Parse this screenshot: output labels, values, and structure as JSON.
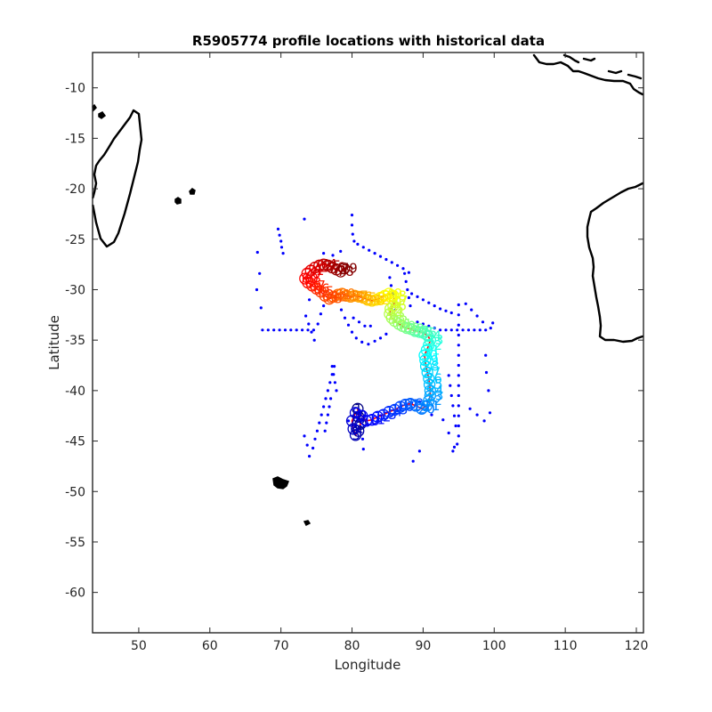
{
  "chart_data": {
    "type": "scatter",
    "title": "R5905774 profile locations with historical data",
    "xlabel": "Longitude",
    "ylabel": "Latitude",
    "xlim": [
      43.5,
      121
    ],
    "ylim": [
      -64,
      -6.5
    ],
    "xticks": [
      50,
      60,
      70,
      80,
      90,
      100,
      110,
      120
    ],
    "yticks": [
      -10,
      -15,
      -20,
      -25,
      -30,
      -35,
      -40,
      -45,
      -50,
      -55,
      -60
    ],
    "historical_color": "#0000ff",
    "trajectory_color": "#ff0000",
    "colormap": "jet",
    "historical_points": [
      [
        69.6,
        -24.0
      ],
      [
        69.8,
        -24.6
      ],
      [
        70.0,
        -25.2
      ],
      [
        70.1,
        -25.8
      ],
      [
        70.3,
        -26.4
      ],
      [
        66.7,
        -26.3
      ],
      [
        67.0,
        -28.4
      ],
      [
        66.6,
        -30.0
      ],
      [
        67.2,
        -31.8
      ],
      [
        73.3,
        -23.0
      ],
      [
        76.0,
        -26.4
      ],
      [
        77.3,
        -26.6
      ],
      [
        78.4,
        -26.2
      ],
      [
        80.0,
        -22.6
      ],
      [
        80.0,
        -23.6
      ],
      [
        80.1,
        -24.5
      ],
      [
        80.3,
        -25.2
      ],
      [
        80.8,
        -25.5
      ],
      [
        81.6,
        -25.8
      ],
      [
        82.4,
        -26.1
      ],
      [
        83.2,
        -26.4
      ],
      [
        84.0,
        -26.7
      ],
      [
        84.8,
        -27.0
      ],
      [
        85.6,
        -27.3
      ],
      [
        86.4,
        -27.6
      ],
      [
        87.2,
        -27.9
      ],
      [
        88.0,
        -28.3
      ],
      [
        85.3,
        -28.8
      ],
      [
        85.5,
        -29.6
      ],
      [
        85.7,
        -30.4
      ],
      [
        85.9,
        -31.2
      ],
      [
        86.1,
        -32.0
      ],
      [
        87.4,
        -28.4
      ],
      [
        87.6,
        -29.2
      ],
      [
        87.8,
        -30.0
      ],
      [
        88.0,
        -30.8
      ],
      [
        88.2,
        -31.6
      ],
      [
        88.4,
        -30.4
      ],
      [
        89.2,
        -30.7
      ],
      [
        90.0,
        -31.0
      ],
      [
        90.8,
        -31.3
      ],
      [
        91.6,
        -31.6
      ],
      [
        92.4,
        -31.9
      ],
      [
        93.2,
        -32.1
      ],
      [
        94.0,
        -32.3
      ],
      [
        89.2,
        -33.2
      ],
      [
        90.0,
        -33.4
      ],
      [
        90.8,
        -33.6
      ],
      [
        91.6,
        -33.8
      ],
      [
        92.4,
        -34.0
      ],
      [
        93.2,
        -34.0
      ],
      [
        94.0,
        -34.0
      ],
      [
        94.8,
        -34.0
      ],
      [
        95.6,
        -34.0
      ],
      [
        96.4,
        -34.0
      ],
      [
        97.2,
        -34.0
      ],
      [
        98.0,
        -34.0
      ],
      [
        98.8,
        -34.0
      ],
      [
        99.5,
        -33.8
      ],
      [
        99.8,
        -33.3
      ],
      [
        96.0,
        -31.4
      ],
      [
        96.8,
        -32.0
      ],
      [
        97.6,
        -32.6
      ],
      [
        98.4,
        -33.2
      ],
      [
        95.0,
        -31.5
      ],
      [
        95.0,
        -32.5
      ],
      [
        95.0,
        -33.5
      ],
      [
        95.0,
        -34.5
      ],
      [
        95.0,
        -35.5
      ],
      [
        95.0,
        -36.5
      ],
      [
        95.0,
        -37.5
      ],
      [
        95.0,
        -38.5
      ],
      [
        95.0,
        -39.5
      ],
      [
        95.0,
        -40.5
      ],
      [
        95.0,
        -41.5
      ],
      [
        95.0,
        -42.5
      ],
      [
        95.0,
        -43.5
      ],
      [
        95.0,
        -44.5
      ],
      [
        94.8,
        -45.3
      ],
      [
        94.4,
        -45.6
      ],
      [
        94.2,
        -46.0
      ],
      [
        93.6,
        -38.5
      ],
      [
        93.8,
        -39.5
      ],
      [
        94.0,
        -40.5
      ],
      [
        94.2,
        -41.5
      ],
      [
        94.4,
        -42.5
      ],
      [
        94.6,
        -43.5
      ],
      [
        98.8,
        -36.5
      ],
      [
        98.9,
        -38.2
      ],
      [
        99.2,
        -40.0
      ],
      [
        99.4,
        -42.2
      ],
      [
        98.6,
        -43.0
      ],
      [
        96.6,
        -41.8
      ],
      [
        97.6,
        -42.4
      ],
      [
        67.4,
        -34.0
      ],
      [
        68.2,
        -34.0
      ],
      [
        69.0,
        -34.0
      ],
      [
        69.8,
        -34.0
      ],
      [
        70.6,
        -34.0
      ],
      [
        71.4,
        -34.0
      ],
      [
        72.2,
        -34.0
      ],
      [
        73.0,
        -34.0
      ],
      [
        73.8,
        -34.0
      ],
      [
        74.6,
        -34.0
      ],
      [
        73.5,
        -32.6
      ],
      [
        73.9,
        -33.4
      ],
      [
        74.3,
        -34.2
      ],
      [
        74.7,
        -35.0
      ],
      [
        75.2,
        -33.4
      ],
      [
        75.6,
        -32.4
      ],
      [
        76.0,
        -31.6
      ],
      [
        74.0,
        -31.0
      ],
      [
        78.5,
        -32.0
      ],
      [
        79.0,
        -32.8
      ],
      [
        79.5,
        -33.5
      ],
      [
        80.0,
        -34.2
      ],
      [
        80.6,
        -34.8
      ],
      [
        81.4,
        -35.2
      ],
      [
        82.3,
        -35.4
      ],
      [
        83.2,
        -35.1
      ],
      [
        84.0,
        -34.8
      ],
      [
        84.8,
        -34.4
      ],
      [
        80.2,
        -32.8
      ],
      [
        81.0,
        -33.2
      ],
      [
        81.8,
        -33.6
      ],
      [
        82.6,
        -33.6
      ],
      [
        77.2,
        -37.6
      ],
      [
        77.4,
        -38.4
      ],
      [
        77.6,
        -39.2
      ],
      [
        77.8,
        -40.0
      ],
      [
        77.0,
        -40.8
      ],
      [
        76.8,
        -41.6
      ],
      [
        76.6,
        -42.4
      ],
      [
        76.4,
        -43.2
      ],
      [
        76.2,
        -44.0
      ],
      [
        74.5,
        -45.7
      ],
      [
        74.8,
        -44.8
      ],
      [
        75.1,
        -44.0
      ],
      [
        75.4,
        -43.2
      ],
      [
        75.7,
        -42.4
      ],
      [
        76.0,
        -41.6
      ],
      [
        76.3,
        -40.8
      ],
      [
        76.6,
        -40.0
      ],
      [
        76.9,
        -39.2
      ],
      [
        77.2,
        -38.4
      ],
      [
        77.5,
        -37.6
      ],
      [
        73.3,
        -44.5
      ],
      [
        73.7,
        -45.4
      ],
      [
        74.0,
        -46.5
      ],
      [
        81.5,
        -44.8
      ],
      [
        81.6,
        -45.8
      ],
      [
        88.6,
        -47.0
      ],
      [
        89.5,
        -46.0
      ],
      [
        91.2,
        -42.4
      ],
      [
        92.8,
        -42.9
      ],
      [
        93.6,
        -44.2
      ],
      [
        79.5,
        -43.0
      ],
      [
        80.5,
        -43.5
      ],
      [
        86.4,
        -42.0
      ],
      [
        87.5,
        -41.4
      ],
      [
        88.4,
        -41.2
      ],
      [
        89.5,
        -41.1
      ]
    ],
    "profiles": [
      [
        80.8,
        -41.8
      ],
      [
        80.9,
        -42.6
      ],
      [
        81.2,
        -43.3
      ],
      [
        80.9,
        -44.0
      ],
      [
        80.5,
        -44.4
      ],
      [
        80.2,
        -43.8
      ],
      [
        80.0,
        -43.0
      ],
      [
        80.5,
        -42.2
      ],
      [
        81.4,
        -42.5
      ],
      [
        82.0,
        -43.0
      ],
      [
        82.8,
        -42.9
      ],
      [
        83.6,
        -42.6
      ],
      [
        84.4,
        -42.4
      ],
      [
        85.2,
        -42.1
      ],
      [
        86.0,
        -41.9
      ],
      [
        86.8,
        -41.6
      ],
      [
        87.5,
        -41.4
      ],
      [
        88.2,
        -41.3
      ],
      [
        89.0,
        -41.5
      ],
      [
        89.8,
        -41.8
      ],
      [
        90.5,
        -41.5
      ],
      [
        90.8,
        -41.0
      ],
      [
        91.0,
        -40.5
      ],
      [
        91.0,
        -40.0
      ],
      [
        90.9,
        -39.4
      ],
      [
        90.8,
        -38.8
      ],
      [
        90.6,
        -38.2
      ],
      [
        90.4,
        -37.6
      ],
      [
        90.3,
        -37.0
      ],
      [
        90.2,
        -36.5
      ],
      [
        90.5,
        -36.0
      ],
      [
        90.8,
        -35.5
      ],
      [
        91.0,
        -35.0
      ],
      [
        90.7,
        -34.6
      ],
      [
        90.1,
        -34.3
      ],
      [
        89.5,
        -34.2
      ],
      [
        88.9,
        -34.1
      ],
      [
        88.3,
        -33.9
      ],
      [
        87.7,
        -33.8
      ],
      [
        87.1,
        -33.6
      ],
      [
        86.6,
        -33.4
      ],
      [
        86.0,
        -33.1
      ],
      [
        85.6,
        -32.8
      ],
      [
        85.3,
        -32.4
      ],
      [
        85.4,
        -31.9
      ],
      [
        85.8,
        -31.6
      ],
      [
        86.0,
        -31.1
      ],
      [
        85.8,
        -30.6
      ],
      [
        85.2,
        -30.4
      ],
      [
        84.6,
        -30.6
      ],
      [
        84.0,
        -30.8
      ],
      [
        83.4,
        -31.0
      ],
      [
        82.8,
        -31.1
      ],
      [
        82.2,
        -31.0
      ],
      [
        81.6,
        -30.8
      ],
      [
        81.0,
        -30.7
      ],
      [
        80.4,
        -30.6
      ],
      [
        79.8,
        -30.7
      ],
      [
        79.2,
        -30.6
      ],
      [
        78.6,
        -30.4
      ],
      [
        78.0,
        -30.5
      ],
      [
        77.4,
        -30.7
      ],
      [
        76.8,
        -30.9
      ],
      [
        76.2,
        -30.6
      ],
      [
        75.6,
        -30.2
      ],
      [
        75.0,
        -29.9
      ],
      [
        74.4,
        -29.6
      ],
      [
        73.8,
        -29.3
      ],
      [
        73.4,
        -28.9
      ],
      [
        73.7,
        -28.4
      ],
      [
        74.2,
        -28.1
      ],
      [
        74.8,
        -27.8
      ],
      [
        75.4,
        -27.6
      ],
      [
        76.0,
        -27.5
      ],
      [
        76.6,
        -27.6
      ],
      [
        77.2,
        -27.8
      ],
      [
        77.8,
        -28.0
      ],
      [
        78.4,
        -28.2
      ],
      [
        78.9,
        -27.9
      ]
    ]
  }
}
